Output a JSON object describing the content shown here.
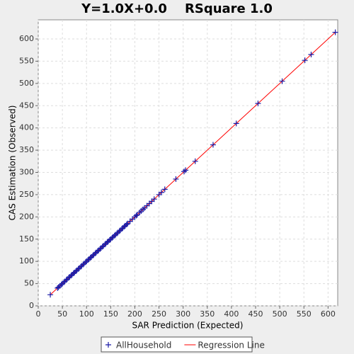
{
  "chart_data": {
    "type": "scatter",
    "title": "Y=1.0X+0.0    RSquare 1.0",
    "x_label": "SAR Prediction (Expected)",
    "y_label": "CAS Estimation (Observed)",
    "xlim": [
      0,
      620
    ],
    "ylim": [
      0,
      643
    ],
    "xticks": [
      0,
      50,
      100,
      150,
      200,
      250,
      300,
      350,
      400,
      450,
      500,
      550,
      600
    ],
    "yticks": [
      0,
      50,
      100,
      150,
      200,
      250,
      300,
      350,
      400,
      450,
      500,
      550,
      600
    ],
    "grid": true,
    "legend": "bottom",
    "series": [
      {
        "name": "AllHousehold",
        "color": "#1a1aa6",
        "marker": "plus",
        "x": [
          25,
          40,
          42,
          45,
          48,
          50,
          53,
          55,
          58,
          60,
          63,
          65,
          68,
          70,
          73,
          75,
          78,
          80,
          83,
          85,
          88,
          90,
          93,
          95,
          98,
          100,
          103,
          105,
          108,
          110,
          113,
          115,
          118,
          120,
          123,
          125,
          128,
          130,
          133,
          135,
          138,
          140,
          143,
          145,
          148,
          150,
          153,
          155,
          158,
          160,
          163,
          165,
          168,
          170,
          173,
          175,
          178,
          180,
          183,
          185,
          190,
          195,
          200,
          203,
          205,
          210,
          213,
          217,
          220,
          225,
          230,
          235,
          240,
          250,
          255,
          262,
          285,
          302,
          305,
          325,
          362,
          410,
          455,
          505,
          552,
          565,
          615
        ],
        "values": [
          25,
          40,
          42,
          45,
          48,
          50,
          53,
          55,
          58,
          60,
          63,
          65,
          68,
          70,
          73,
          75,
          78,
          80,
          83,
          85,
          88,
          90,
          93,
          95,
          98,
          100,
          103,
          105,
          108,
          110,
          113,
          115,
          118,
          120,
          123,
          125,
          128,
          130,
          133,
          135,
          138,
          140,
          143,
          145,
          148,
          150,
          153,
          155,
          158,
          160,
          163,
          165,
          168,
          170,
          173,
          175,
          178,
          180,
          183,
          185,
          190,
          195,
          200,
          203,
          205,
          210,
          213,
          217,
          220,
          225,
          230,
          235,
          240,
          250,
          255,
          262,
          285,
          302,
          305,
          325,
          362,
          410,
          455,
          505,
          552,
          565,
          615
        ]
      },
      {
        "name": "Regression Line",
        "color": "#ff0000",
        "marker": "line",
        "x": [
          25,
          615
        ],
        "values": [
          25,
          615
        ]
      }
    ]
  }
}
